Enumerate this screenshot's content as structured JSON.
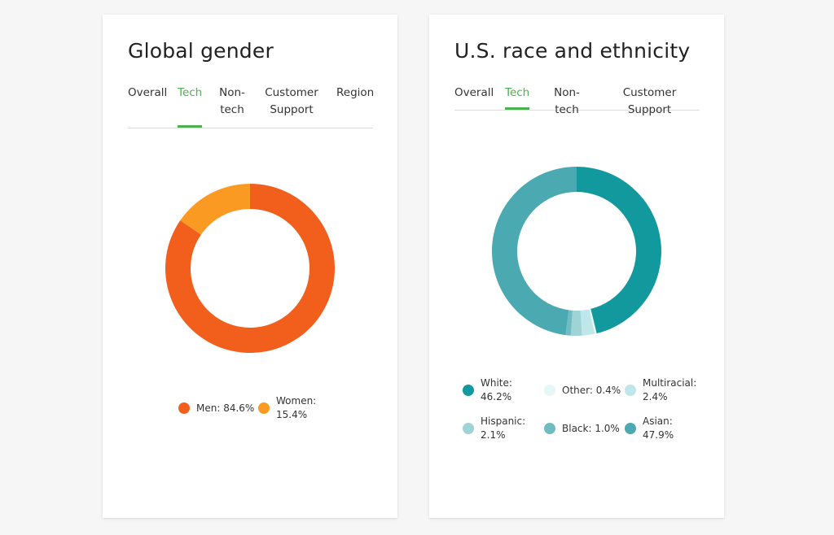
{
  "gender": {
    "title": "Global gender",
    "tabs": [
      {
        "label": "Overall",
        "active": false
      },
      {
        "label": "Tech",
        "active": true
      },
      {
        "label": "Non-\ntech",
        "active": false
      },
      {
        "label": "Customer\nSupport",
        "active": false
      },
      {
        "label": "Region",
        "active": false
      }
    ],
    "legend": [
      {
        "text": "Men: 84.6%",
        "color": "#f25f1c"
      },
      {
        "text": "Women:\n15.4%",
        "color": "#fb9a22"
      }
    ]
  },
  "race": {
    "title": "U.S. race and ethnicity",
    "tabs": [
      {
        "label": "Overall",
        "active": false
      },
      {
        "label": "Tech",
        "active": true
      },
      {
        "label": "Non-tech",
        "active": false
      },
      {
        "label": "Customer Support",
        "active": false
      }
    ],
    "legend": [
      {
        "text": "White:\n46.2%",
        "color": "#12999d"
      },
      {
        "text": "Other: 0.4%",
        "color": "#e6f7f7"
      },
      {
        "text": "Multiracial:\n2.4%",
        "color": "#bfe6e8"
      },
      {
        "text": "Hispanic:\n2.1%",
        "color": "#9fd3d6"
      },
      {
        "text": "Black: 1.0%",
        "color": "#70bcc3"
      },
      {
        "text": "Asian:\n47.9%",
        "color": "#4aa9b1"
      }
    ]
  },
  "chart_data": [
    {
      "type": "pie",
      "title": "Global gender",
      "categories": [
        "Men",
        "Women"
      ],
      "values": [
        84.6,
        15.4
      ],
      "colors": [
        "#f25f1c",
        "#fb9a22"
      ],
      "legend": "bottom"
    },
    {
      "type": "pie",
      "title": "U.S. race and ethnicity",
      "categories": [
        "White",
        "Other",
        "Multiracial",
        "Hispanic",
        "Black",
        "Asian"
      ],
      "values": [
        46.2,
        0.4,
        2.4,
        2.1,
        1.0,
        47.9
      ],
      "colors": [
        "#12999d",
        "#e6f7f7",
        "#bfe6e8",
        "#9fd3d6",
        "#70bcc3",
        "#4aa9b1"
      ],
      "legend": "bottom"
    }
  ]
}
